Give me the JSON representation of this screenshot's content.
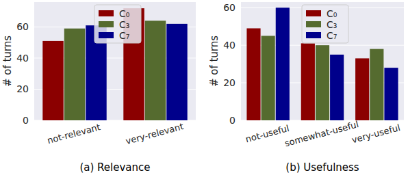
{
  "chart_data": [
    {
      "type": "bar",
      "title": "(a) Relevance",
      "y_label": "# of turns",
      "categories": [
        "not-relevant",
        "very-relevant"
      ],
      "series": [
        {
          "name": "C₀",
          "color": "#8b0000",
          "values": [
            51,
            72
          ]
        },
        {
          "name": "C₃",
          "color": "#556b2f",
          "values": [
            59,
            64
          ]
        },
        {
          "name": "C₇",
          "color": "#00008b",
          "values": [
            61,
            62
          ]
        }
      ],
      "ylim": [
        0,
        76
      ],
      "yticks": [
        0,
        20,
        40,
        60
      ],
      "grid": true,
      "legend": "upper center"
    },
    {
      "type": "bar",
      "title": "(b) Usefulness",
      "y_label": "# of turns",
      "categories": [
        "not-useful",
        "somewhat-useful",
        "very-useful"
      ],
      "series": [
        {
          "name": "C₀",
          "color": "#8b0000",
          "values": [
            49,
            41,
            33
          ]
        },
        {
          "name": "C₃",
          "color": "#556b2f",
          "values": [
            45,
            40,
            38
          ]
        },
        {
          "name": "C₇",
          "color": "#00008b",
          "values": [
            60,
            35,
            28
          ]
        }
      ],
      "ylim": [
        0,
        63
      ],
      "yticks": [
        0,
        20,
        40,
        60
      ],
      "grid": true,
      "legend": "upper center"
    }
  ]
}
